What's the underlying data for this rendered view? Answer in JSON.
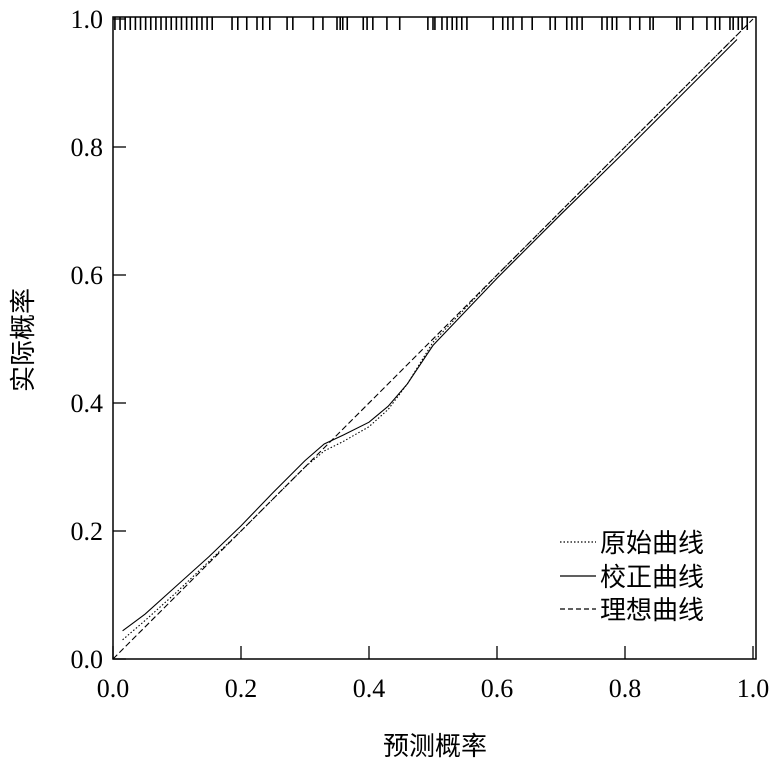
{
  "chart_data": {
    "type": "line",
    "title": "",
    "xlabel": "预测概率",
    "ylabel": "实际概率",
    "xlim": [
      0,
      1
    ],
    "ylim": [
      0,
      1
    ],
    "xticks": [
      "0.0",
      "0.2",
      "0.4",
      "0.6",
      "0.8",
      "1.0"
    ],
    "yticks": [
      "0.0",
      "0.2",
      "0.4",
      "0.6",
      "0.8",
      "1.0"
    ],
    "grid": false,
    "legend_position": "bottom-right",
    "series": [
      {
        "name": "原始曲线",
        "style": "dotted",
        "points": [
          [
            0.015,
            0.03
          ],
          [
            0.05,
            0.06
          ],
          [
            0.1,
            0.105
          ],
          [
            0.2,
            0.2
          ],
          [
            0.3,
            0.3
          ],
          [
            0.33,
            0.325
          ],
          [
            0.36,
            0.34
          ],
          [
            0.4,
            0.363
          ],
          [
            0.43,
            0.39
          ],
          [
            0.46,
            0.43
          ],
          [
            0.5,
            0.495
          ],
          [
            0.6,
            0.6
          ],
          [
            0.7,
            0.7
          ],
          [
            0.8,
            0.8
          ],
          [
            0.9,
            0.9
          ],
          [
            0.975,
            0.975
          ]
        ]
      },
      {
        "name": "校正曲线",
        "style": "solid",
        "points": [
          [
            0.015,
            0.044
          ],
          [
            0.05,
            0.07
          ],
          [
            0.1,
            0.115
          ],
          [
            0.15,
            0.16
          ],
          [
            0.2,
            0.208
          ],
          [
            0.25,
            0.26
          ],
          [
            0.3,
            0.31
          ],
          [
            0.33,
            0.336
          ],
          [
            0.36,
            0.35
          ],
          [
            0.4,
            0.37
          ],
          [
            0.43,
            0.395
          ],
          [
            0.46,
            0.43
          ],
          [
            0.5,
            0.49
          ],
          [
            0.6,
            0.595
          ],
          [
            0.7,
            0.695
          ],
          [
            0.8,
            0.793
          ],
          [
            0.9,
            0.893
          ],
          [
            0.975,
            0.968
          ]
        ]
      },
      {
        "name": "理想曲线",
        "style": "dashed",
        "points": [
          [
            0,
            0
          ],
          [
            1,
            1
          ]
        ]
      }
    ],
    "rug": [
      0.003,
      0.011,
      0.019,
      0.027,
      0.035,
      0.043,
      0.051,
      0.059,
      0.067,
      0.075,
      0.083,
      0.091,
      0.099,
      0.107,
      0.115,
      0.123,
      0.131,
      0.139,
      0.147,
      0.155,
      0.186,
      0.195,
      0.209,
      0.225,
      0.234,
      0.245,
      0.272,
      0.281,
      0.313,
      0.328,
      0.35,
      0.355,
      0.359,
      0.366,
      0.391,
      0.397,
      0.406,
      0.428,
      0.448,
      0.492,
      0.5,
      0.503,
      0.514,
      0.522,
      0.53,
      0.537,
      0.545,
      0.553,
      0.594,
      0.609,
      0.617,
      0.625,
      0.639,
      0.655,
      0.683,
      0.691,
      0.709,
      0.717,
      0.725,
      0.733,
      0.764,
      0.772,
      0.78,
      0.787,
      0.808,
      0.823,
      0.839,
      0.844,
      0.881,
      0.886,
      0.906,
      0.928,
      0.941,
      0.948,
      0.964,
      0.969,
      0.977,
      0.983,
      0.991
    ]
  }
}
